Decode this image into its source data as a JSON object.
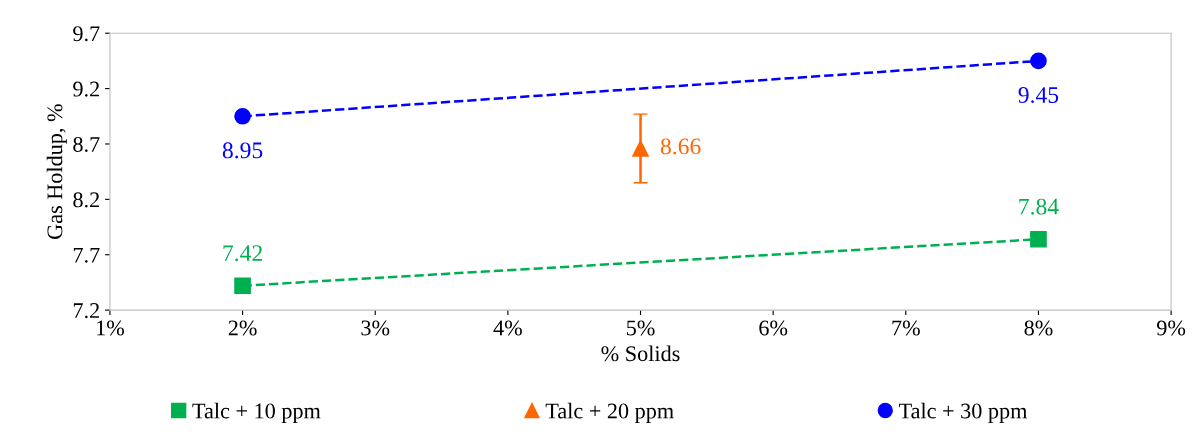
{
  "chart_data": {
    "type": "line",
    "xlabel": "% Solids",
    "ylabel": "Gas Holdup, %",
    "xlim": [
      1,
      9
    ],
    "xticks": [
      {
        "value": 1,
        "label": "1%"
      },
      {
        "value": 2,
        "label": "2%"
      },
      {
        "value": 3,
        "label": "3%"
      },
      {
        "value": 4,
        "label": "4%"
      },
      {
        "value": 5,
        "label": "5%"
      },
      {
        "value": 6,
        "label": "6%"
      },
      {
        "value": 7,
        "label": "7%"
      },
      {
        "value": 8,
        "label": "8%"
      },
      {
        "value": 9,
        "label": "9%"
      }
    ],
    "ylim": [
      7.2,
      9.7
    ],
    "yticks": [
      7.2,
      7.7,
      8.2,
      8.7,
      9.2,
      9.7
    ],
    "series": [
      {
        "name": "Talc + 10 ppm",
        "color": "#00b050",
        "x": [
          2,
          8
        ],
        "values": [
          7.42,
          7.84
        ],
        "marker": "square",
        "line_style": "dashed"
      },
      {
        "name": "Talc + 20 ppm",
        "color": "#ff6600",
        "x": [
          5
        ],
        "values": [
          8.66
        ],
        "errors": [
          0.31
        ],
        "marker": "triangle",
        "line_style": "solid"
      },
      {
        "name": "Talc + 30 ppm",
        "color": "#0000ff",
        "x": [
          2,
          8
        ],
        "values": [
          8.95,
          9.45
        ],
        "marker": "circle",
        "line_style": "dashed"
      }
    ],
    "data_labels": true,
    "legend": "bottom",
    "grid": false
  }
}
